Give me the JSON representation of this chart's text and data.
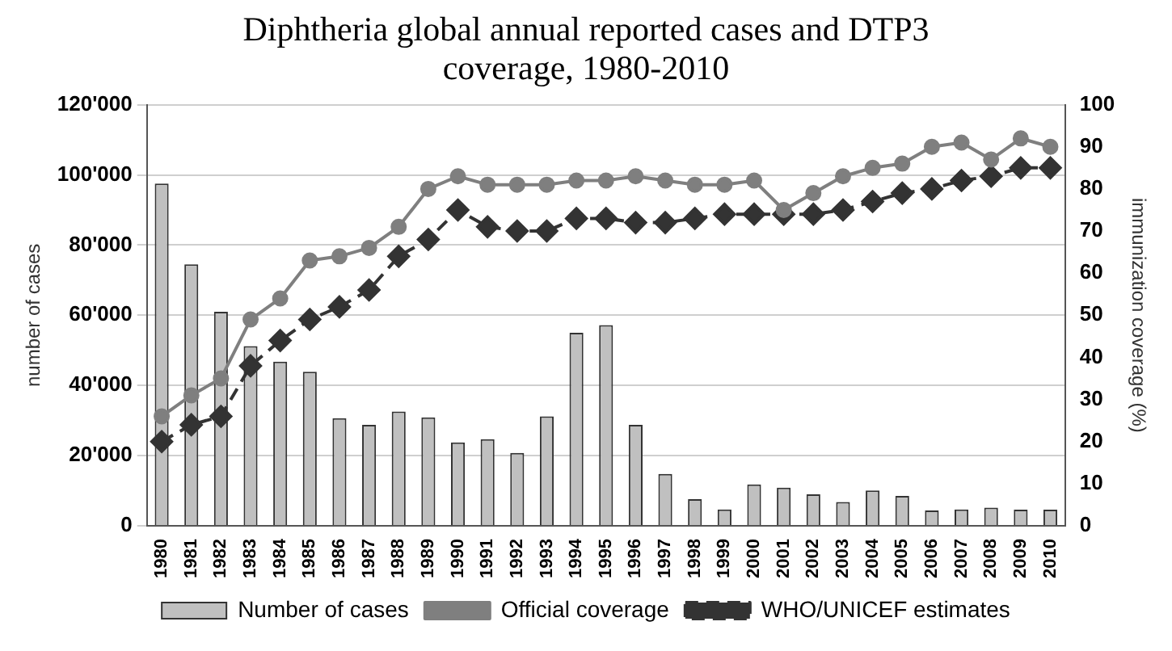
{
  "chart_data": {
    "type": "bar",
    "title": "Diphtheria global annual reported cases and DTP3 coverage, 1980-2010",
    "ylabel": "number of cases",
    "y2label": "immunization coverage (%)",
    "categories": [
      "1980",
      "1981",
      "1982",
      "1983",
      "1984",
      "1985",
      "1986",
      "1987",
      "1988",
      "1989",
      "1990",
      "1991",
      "1992",
      "1993",
      "1994",
      "1995",
      "1996",
      "1997",
      "1998",
      "1999",
      "2000",
      "2001",
      "2002",
      "2003",
      "2004",
      "2005",
      "2006",
      "2007",
      "2008",
      "2009",
      "2010"
    ],
    "series": [
      {
        "name": "Number of cases",
        "color": "#c0c0c0",
        "values": [
          97500,
          74500,
          61000,
          51200,
          46800,
          43900,
          30700,
          28800,
          32600,
          30900,
          23800,
          24700,
          20800,
          31200,
          55000,
          57200,
          28800,
          14800,
          7600,
          4700,
          11800,
          10900,
          9000,
          6800,
          10100,
          8500,
          4400,
          4700,
          5200,
          4600,
          4600
        ]
      },
      {
        "name": "Official coverage",
        "type": "line",
        "axis": "y2",
        "color": "#7f7f7f",
        "marker": "circle",
        "line_style": "solid",
        "values": [
          26,
          31,
          35,
          49,
          54,
          63,
          64,
          66,
          71,
          80,
          83,
          81,
          81,
          81,
          82,
          82,
          83,
          82,
          81,
          81,
          82,
          75,
          79,
          83,
          85,
          86,
          90,
          91,
          87,
          92,
          90
        ]
      },
      {
        "name": "WHO/UNICEF estimates",
        "type": "line",
        "axis": "y2",
        "color": "#333333",
        "marker": "diamond",
        "line_style": "dashed",
        "values": [
          20,
          24,
          26,
          38,
          44,
          49,
          52,
          56,
          64,
          68,
          75,
          71,
          70,
          70,
          73,
          73,
          72,
          72,
          73,
          74,
          74,
          74,
          74,
          75,
          77,
          79,
          80,
          82,
          83,
          85,
          85
        ]
      }
    ],
    "ylim": [
      0,
      120000
    ],
    "yticks": [
      0,
      {
        "value": 20000,
        "label": "20'000"
      },
      {
        "value": 40000,
        "label": "40'000"
      },
      {
        "value": 60000,
        "label": "60'000"
      },
      {
        "value": 80000,
        "label": "80'000"
      },
      {
        "value": 100000,
        "label": "100'000"
      },
      {
        "value": 120000,
        "label": "120'000"
      }
    ],
    "y2lim": [
      0,
      100
    ],
    "y2ticks": [
      0,
      10,
      20,
      30,
      40,
      50,
      60,
      70,
      80,
      90,
      100
    ],
    "grid": "y",
    "legend": "bottom"
  }
}
